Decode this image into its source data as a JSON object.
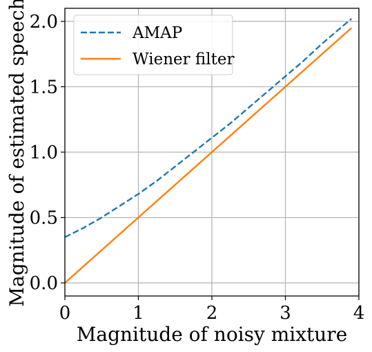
{
  "chart_data": {
    "type": "line",
    "title": "",
    "xlabel": "Magnitude of noisy mixture",
    "ylabel": "Magnitude of estimated speech",
    "xlim": [
      0,
      4
    ],
    "ylim": [
      -0.1,
      2.1
    ],
    "xticks": [
      0,
      1,
      2,
      3,
      4
    ],
    "xtick_labels": [
      "0",
      "1",
      "2",
      "3",
      "4"
    ],
    "yticks": [
      0,
      0.5,
      1,
      1.5,
      2
    ],
    "ytick_labels": [
      "0.0",
      "0.5",
      "1.0",
      "1.5",
      "2.0"
    ],
    "grid": true,
    "legend_position": "top-left",
    "series": [
      {
        "name": "AMAP",
        "style": "dashed",
        "color": "#1f77b4",
        "x": [
          0,
          0.25,
          0.5,
          0.75,
          1.0,
          1.25,
          1.5,
          1.75,
          2.0,
          2.25,
          2.5,
          2.75,
          3.0,
          3.25,
          3.5,
          3.75,
          3.9
        ],
        "y": [
          0.35,
          0.42,
          0.5,
          0.59,
          0.68,
          0.78,
          0.89,
          1.0,
          1.11,
          1.22,
          1.34,
          1.46,
          1.58,
          1.7,
          1.83,
          1.95,
          2.02
        ]
      },
      {
        "name": "Wiener filter",
        "style": "solid",
        "color": "#ff7f0e",
        "x": [
          0,
          3.9
        ],
        "y": [
          0,
          1.95
        ]
      }
    ]
  }
}
